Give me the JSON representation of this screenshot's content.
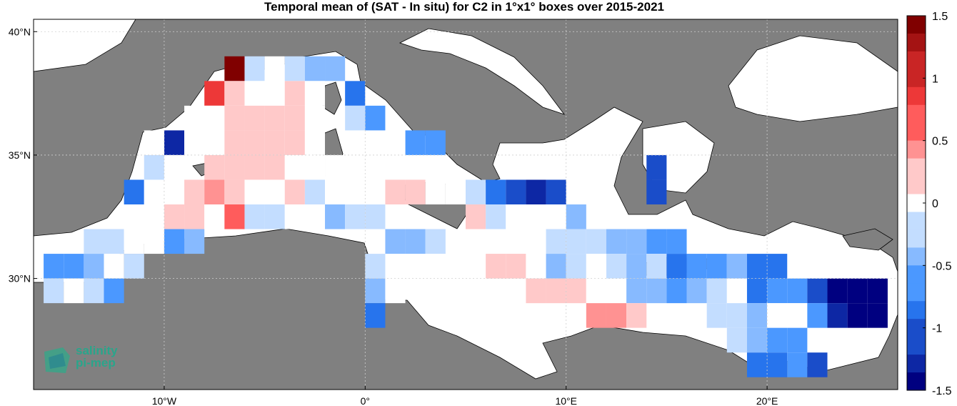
{
  "chart_data": {
    "type": "heatmap",
    "title": "Temporal mean of (SAT - In situ) for C2 in 1°x1° boxes over 2015-2021",
    "x_tick_labels": [
      "10°W",
      "0°",
      "10°E",
      "20°E"
    ],
    "x_ticks": [
      -10,
      0,
      10,
      20
    ],
    "y_tick_labels": [
      "30°N",
      "35°N",
      "40°N"
    ],
    "y_ticks": [
      30,
      35,
      40
    ],
    "xlim": [
      -16.5,
      26.5
    ],
    "ylim": [
      25.5,
      40.5
    ],
    "grid": true,
    "colorbar": {
      "min": -1.5,
      "max": 1.5,
      "tick_labels": [
        "1.5",
        "1",
        "0.5",
        "0",
        "-0.5",
        "-1",
        "-1.5"
      ],
      "tick_values": [
        1.5,
        1,
        0.5,
        0,
        -0.5,
        -1,
        -1.5
      ]
    },
    "cells": [
      {
        "lon": -6.5,
        "lat": 38.5,
        "value": 1.45
      },
      {
        "lon": -5.5,
        "lat": 38.5,
        "value": -0.2
      },
      {
        "lon": -4.5,
        "lat": 38.5,
        "value": -0.1
      },
      {
        "lon": -3.5,
        "lat": 38.5,
        "value": -0.3
      },
      {
        "lon": -2.5,
        "lat": 38.5,
        "value": -0.45
      },
      {
        "lon": -1.5,
        "lat": 38.5,
        "value": -0.4
      },
      {
        "lon": -7.5,
        "lat": 37.5,
        "value": 0.85
      },
      {
        "lon": -6.5,
        "lat": 37.5,
        "value": 0.3
      },
      {
        "lon": -5.5,
        "lat": 37.5,
        "value": 0.0
      },
      {
        "lon": -4.5,
        "lat": 37.5,
        "value": 0.05
      },
      {
        "lon": -3.5,
        "lat": 37.5,
        "value": 0.15
      },
      {
        "lon": -2.5,
        "lat": 37.5,
        "value": -0.1
      },
      {
        "lon": -0.5,
        "lat": 37.5,
        "value": -0.85
      },
      {
        "lon": -8.5,
        "lat": 36.5,
        "value": 0.1
      },
      {
        "lon": -7.5,
        "lat": 36.5,
        "value": -0.1
      },
      {
        "lon": -6.5,
        "lat": 36.5,
        "value": 0.15
      },
      {
        "lon": -5.5,
        "lat": 36.5,
        "value": 0.25
      },
      {
        "lon": -4.5,
        "lat": 36.5,
        "value": 0.25
      },
      {
        "lon": -3.5,
        "lat": 36.5,
        "value": 0.25
      },
      {
        "lon": -2.5,
        "lat": 36.5,
        "value": 0.05
      },
      {
        "lon": -0.5,
        "lat": 36.5,
        "value": -0.25
      },
      {
        "lon": 0.5,
        "lat": 36.5,
        "value": -0.6
      },
      {
        "lon": -9.5,
        "lat": 35.5,
        "value": -1.25
      },
      {
        "lon": -8.5,
        "lat": 35.5,
        "value": 0.0
      },
      {
        "lon": -7.5,
        "lat": 35.5,
        "value": 0.0
      },
      {
        "lon": -6.5,
        "lat": 35.5,
        "value": 0.15
      },
      {
        "lon": -5.5,
        "lat": 35.5,
        "value": 0.25
      },
      {
        "lon": -4.5,
        "lat": 35.5,
        "value": 0.25
      },
      {
        "lon": -3.5,
        "lat": 35.5,
        "value": 0.25
      },
      {
        "lon": -2.5,
        "lat": 35.5,
        "value": 0.0
      },
      {
        "lon": 2.5,
        "lat": 35.5,
        "value": -0.65
      },
      {
        "lon": 3.5,
        "lat": 35.5,
        "value": -0.65
      },
      {
        "lon": -10.5,
        "lat": 35.5,
        "value": 0.1
      },
      {
        "lon": -10.5,
        "lat": 34.5,
        "value": -0.15
      },
      {
        "lon": -9.5,
        "lat": 34.5,
        "value": -0.1
      },
      {
        "lon": -7.5,
        "lat": 34.5,
        "value": 0.3
      },
      {
        "lon": -6.5,
        "lat": 34.5,
        "value": 0.25
      },
      {
        "lon": -5.5,
        "lat": 34.5,
        "value": 0.25
      },
      {
        "lon": -4.5,
        "lat": 34.5,
        "value": 0.25
      },
      {
        "lon": -3.5,
        "lat": 34.5,
        "value": 0.0
      },
      {
        "lon": -2.5,
        "lat": 34.5,
        "value": -0.1
      },
      {
        "lon": -1.5,
        "lat": 34.5,
        "value": 0.0
      },
      {
        "lon": -11.5,
        "lat": 33.5,
        "value": -0.8
      },
      {
        "lon": -10.5,
        "lat": 33.5,
        "value": 0.0
      },
      {
        "lon": -8.5,
        "lat": 33.5,
        "value": 0.25
      },
      {
        "lon": -7.5,
        "lat": 33.5,
        "value": 0.4
      },
      {
        "lon": -6.5,
        "lat": 33.5,
        "value": 0.3
      },
      {
        "lon": -5.5,
        "lat": 33.5,
        "value": 0.1
      },
      {
        "lon": -4.5,
        "lat": 33.5,
        "value": 0.1
      },
      {
        "lon": -3.5,
        "lat": 33.5,
        "value": 0.25
      },
      {
        "lon": -2.5,
        "lat": 33.5,
        "value": -0.15
      },
      {
        "lon": -1.5,
        "lat": 33.5,
        "value": 0.0
      },
      {
        "lon": -0.5,
        "lat": 33.5,
        "value": -0.1
      },
      {
        "lon": 0.5,
        "lat": 33.5,
        "value": 0.0
      },
      {
        "lon": 1.5,
        "lat": 33.5,
        "value": 0.25
      },
      {
        "lon": 2.5,
        "lat": 33.5,
        "value": 0.15
      },
      {
        "lon": 3.5,
        "lat": 33.5,
        "value": -0.05
      },
      {
        "lon": 4.5,
        "lat": 33.5,
        "value": -0.1
      },
      {
        "lon": 5.5,
        "lat": 33.5,
        "value": -0.15
      },
      {
        "lon": 6.5,
        "lat": 33.5,
        "value": -0.85
      },
      {
        "lon": 7.5,
        "lat": 33.5,
        "value": -1.0
      },
      {
        "lon": 8.5,
        "lat": 33.5,
        "value": -1.2
      },
      {
        "lon": 9.5,
        "lat": 33.5,
        "value": -1.15
      },
      {
        "lon": -9.5,
        "lat": 32.5,
        "value": 0.15
      },
      {
        "lon": -8.5,
        "lat": 32.5,
        "value": 0.15
      },
      {
        "lon": -7.5,
        "lat": 32.5,
        "value": 0.0
      },
      {
        "lon": -6.5,
        "lat": 32.5,
        "value": 0.6
      },
      {
        "lon": -5.5,
        "lat": 32.5,
        "value": -0.25
      },
      {
        "lon": -4.5,
        "lat": 32.5,
        "value": -0.25
      },
      {
        "lon": -3.5,
        "lat": 32.5,
        "value": 0.0
      },
      {
        "lon": -2.5,
        "lat": 32.5,
        "value": 0.0
      },
      {
        "lon": -1.5,
        "lat": 32.5,
        "value": -0.5
      },
      {
        "lon": -0.5,
        "lat": 32.5,
        "value": -0.3
      },
      {
        "lon": 0.5,
        "lat": 32.5,
        "value": -0.2
      },
      {
        "lon": 5.5,
        "lat": 32.5,
        "value": 0.15
      },
      {
        "lon": 6.5,
        "lat": 32.5,
        "value": -0.25
      },
      {
        "lon": 7.5,
        "lat": 32.5,
        "value": 0.0
      },
      {
        "lon": 8.5,
        "lat": 32.5,
        "value": 0.0
      },
      {
        "lon": 9.5,
        "lat": 32.5,
        "value": -0.1
      },
      {
        "lon": 10.5,
        "lat": 32.5,
        "value": -0.5
      },
      {
        "lon": -13.5,
        "lat": 31.5,
        "value": -0.2
      },
      {
        "lon": -12.5,
        "lat": 31.5,
        "value": -0.2
      },
      {
        "lon": -11.5,
        "lat": 31.5,
        "value": -0.1
      },
      {
        "lon": -10.5,
        "lat": 31.5,
        "value": -0.1
      },
      {
        "lon": -9.5,
        "lat": 31.5,
        "value": -0.55
      },
      {
        "lon": -8.5,
        "lat": 31.5,
        "value": -0.35
      },
      {
        "lon": 1.5,
        "lat": 31.5,
        "value": -0.5
      },
      {
        "lon": 2.5,
        "lat": 31.5,
        "value": -0.35
      },
      {
        "lon": 3.5,
        "lat": 31.5,
        "value": -0.15
      },
      {
        "lon": 7.5,
        "lat": 31.5,
        "value": 0.1
      },
      {
        "lon": 8.5,
        "lat": 31.5,
        "value": 0.0
      },
      {
        "lon": 9.5,
        "lat": 31.5,
        "value": -0.15
      },
      {
        "lon": 10.5,
        "lat": 31.5,
        "value": -0.25
      },
      {
        "lon": 11.5,
        "lat": 31.5,
        "value": -0.3
      },
      {
        "lon": 12.5,
        "lat": 31.5,
        "value": -0.35
      },
      {
        "lon": 13.5,
        "lat": 31.5,
        "value": -0.45
      },
      {
        "lon": 14.5,
        "lat": 31.5,
        "value": -0.65
      },
      {
        "lon": 15.5,
        "lat": 31.5,
        "value": -0.7
      },
      {
        "lon": -15.5,
        "lat": 30.5,
        "value": -0.6
      },
      {
        "lon": -14.5,
        "lat": 30.5,
        "value": -0.55
      },
      {
        "lon": -13.5,
        "lat": 30.5,
        "value": -0.35
      },
      {
        "lon": -12.5,
        "lat": 30.5,
        "value": 0.0
      },
      {
        "lon": -11.5,
        "lat": 30.5,
        "value": -0.15
      },
      {
        "lon": 0.5,
        "lat": 30.5,
        "value": -0.25
      },
      {
        "lon": 6.5,
        "lat": 30.5,
        "value": 0.25
      },
      {
        "lon": 7.5,
        "lat": 30.5,
        "value": 0.25
      },
      {
        "lon": 8.5,
        "lat": 30.5,
        "value": 0.0
      },
      {
        "lon": 9.5,
        "lat": 30.5,
        "value": -0.35
      },
      {
        "lon": 10.5,
        "lat": 30.5,
        "value": -0.2
      },
      {
        "lon": 11.5,
        "lat": 30.5,
        "value": 0.0
      },
      {
        "lon": 12.5,
        "lat": 30.5,
        "value": -0.15
      },
      {
        "lon": 13.5,
        "lat": 30.5,
        "value": -0.35
      },
      {
        "lon": 14.5,
        "lat": 30.5,
        "value": -0.3
      },
      {
        "lon": 15.5,
        "lat": 30.5,
        "value": -0.9
      },
      {
        "lon": 16.5,
        "lat": 30.5,
        "value": -0.6
      },
      {
        "lon": 17.5,
        "lat": 30.5,
        "value": -0.55
      },
      {
        "lon": 18.5,
        "lat": 30.5,
        "value": -0.4
      },
      {
        "lon": 19.5,
        "lat": 30.5,
        "value": -0.8
      },
      {
        "lon": 20.5,
        "lat": 30.5,
        "value": -0.8
      },
      {
        "lon": -15.5,
        "lat": 29.5,
        "value": -0.15
      },
      {
        "lon": -14.5,
        "lat": 29.5,
        "value": 0.0
      },
      {
        "lon": -13.5,
        "lat": 29.5,
        "value": -0.25
      },
      {
        "lon": -12.5,
        "lat": 29.5,
        "value": -0.6
      },
      {
        "lon": 0.5,
        "lat": 29.5,
        "value": -0.5
      },
      {
        "lon": 1.5,
        "lat": 29.5,
        "value": 0.0
      },
      {
        "lon": 8.5,
        "lat": 29.5,
        "value": 0.15
      },
      {
        "lon": 9.5,
        "lat": 29.5,
        "value": 0.25
      },
      {
        "lon": 10.5,
        "lat": 29.5,
        "value": 0.25
      },
      {
        "lon": 11.5,
        "lat": 29.5,
        "value": 0.0
      },
      {
        "lon": 12.5,
        "lat": 29.5,
        "value": 0.0
      },
      {
        "lon": 13.5,
        "lat": 29.5,
        "value": -0.4
      },
      {
        "lon": 14.5,
        "lat": 29.5,
        "value": -0.4
      },
      {
        "lon": 15.5,
        "lat": 29.5,
        "value": -0.55
      },
      {
        "lon": 16.5,
        "lat": 29.5,
        "value": -0.35
      },
      {
        "lon": 17.5,
        "lat": 29.5,
        "value": -0.15
      },
      {
        "lon": 18.5,
        "lat": 29.5,
        "value": 0.0
      },
      {
        "lon": 19.5,
        "lat": 29.5,
        "value": -0.85
      },
      {
        "lon": 20.5,
        "lat": 29.5,
        "value": -0.6
      },
      {
        "lon": 21.5,
        "lat": 29.5,
        "value": -0.55
      },
      {
        "lon": 22.5,
        "lat": 29.5,
        "value": -1.1
      },
      {
        "lon": 23.5,
        "lat": 29.5,
        "value": -1.45
      },
      {
        "lon": 24.5,
        "lat": 29.5,
        "value": -1.45
      },
      {
        "lon": 25.5,
        "lat": 29.5,
        "value": -1.4
      },
      {
        "lon": 0.5,
        "lat": 28.5,
        "value": -0.8
      },
      {
        "lon": 11.5,
        "lat": 28.5,
        "value": 0.45
      },
      {
        "lon": 12.5,
        "lat": 28.5,
        "value": 0.45
      },
      {
        "lon": 13.5,
        "lat": 28.5,
        "value": 0.25
      },
      {
        "lon": 17.5,
        "lat": 28.5,
        "value": -0.15
      },
      {
        "lon": 18.5,
        "lat": 28.5,
        "value": -0.3
      },
      {
        "lon": 19.5,
        "lat": 28.5,
        "value": -0.4
      },
      {
        "lon": 20.5,
        "lat": 28.5,
        "value": 0.0
      },
      {
        "lon": 21.5,
        "lat": 28.5,
        "value": 0.0
      },
      {
        "lon": 22.5,
        "lat": 28.5,
        "value": -0.6
      },
      {
        "lon": 23.5,
        "lat": 28.5,
        "value": -1.3
      },
      {
        "lon": 24.5,
        "lat": 28.5,
        "value": -1.45
      },
      {
        "lon": 25.5,
        "lat": 28.5,
        "value": -1.4
      },
      {
        "lon": 18.5,
        "lat": 27.5,
        "value": -0.3
      },
      {
        "lon": 19.5,
        "lat": 27.5,
        "value": -0.35
      },
      {
        "lon": 20.5,
        "lat": 27.5,
        "value": -0.65
      },
      {
        "lon": 21.5,
        "lat": 27.5,
        "value": -0.7
      },
      {
        "lon": 19.5,
        "lat": 26.5,
        "value": -0.8
      },
      {
        "lon": 20.5,
        "lat": 26.5,
        "value": -0.8
      },
      {
        "lon": 21.5,
        "lat": 26.5,
        "value": -0.75
      },
      {
        "lon": 22.5,
        "lat": 26.5,
        "value": -1.05
      },
      {
        "lon": 14.5,
        "lat": 34.5,
        "value": -1.0
      },
      {
        "lon": 14.5,
        "lat": 33.5,
        "value": -1.0
      }
    ]
  },
  "logo": {
    "line1": "salinity",
    "line2": "pi-mep"
  }
}
